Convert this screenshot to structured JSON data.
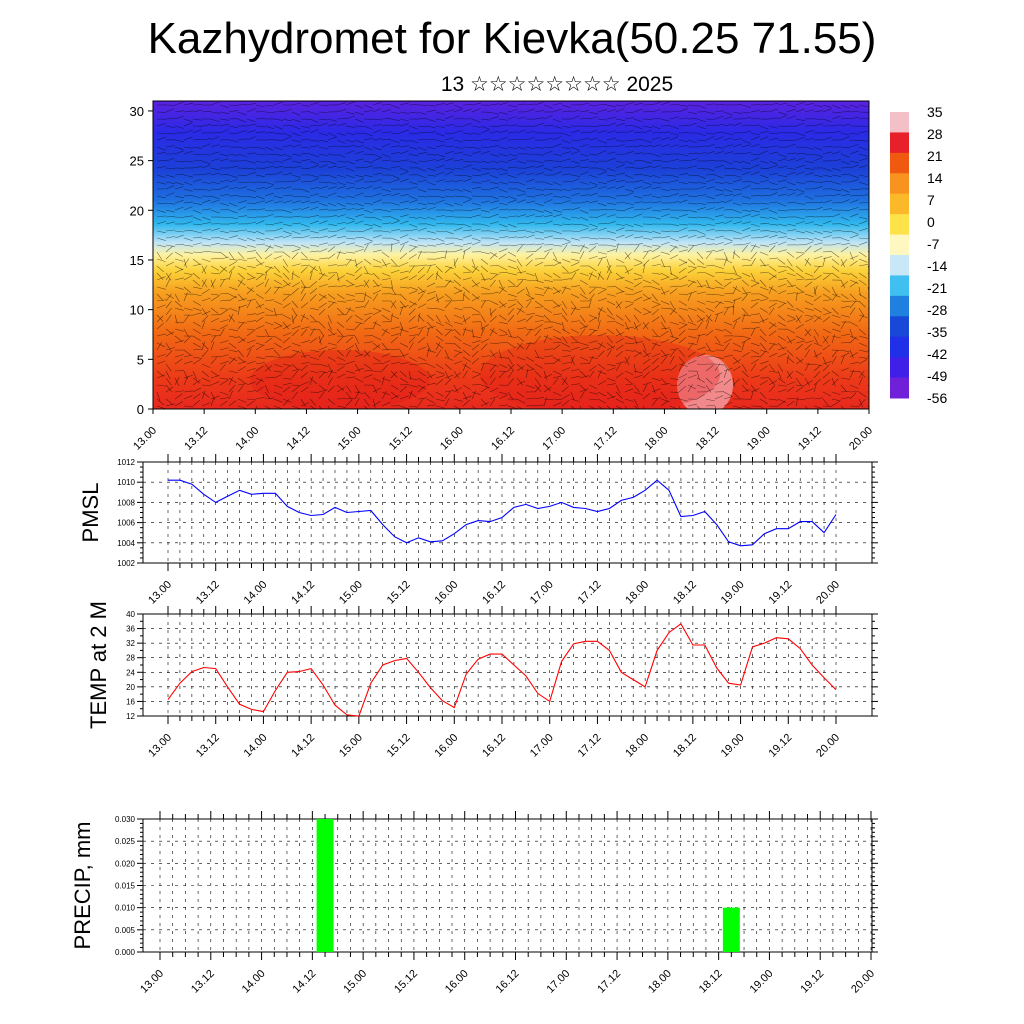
{
  "title": "Kazhydromet for Kievka(50.25 71.55)",
  "subtitle": "13 ☆☆☆☆☆☆☆☆ 2025",
  "time_labels": [
    "13.00",
    "13.12",
    "14.00",
    "14.12",
    "15.00",
    "15.12",
    "16.00",
    "16.12",
    "17.00",
    "17.12",
    "18.00",
    "18.12",
    "19.00",
    "19.12",
    "20.00"
  ],
  "chart_data": [
    {
      "type": "heatmap",
      "name": "cross-section",
      "y_ticks": [
        "0",
        "5",
        "10",
        "15",
        "20",
        "25",
        "30"
      ],
      "ylim": [
        0,
        31
      ],
      "colorbar": {
        "labels": [
          "35",
          "28",
          "21",
          "14",
          "7",
          "0",
          "-7",
          "-14",
          "-21",
          "-28",
          "-35",
          "-42",
          "-49",
          "-56"
        ],
        "colors": [
          "#f4c0c8",
          "#e8202a",
          "#f05a10",
          "#f7931e",
          "#fbb829",
          "#fde24a",
          "#fef8c0",
          "#c8e8f8",
          "#40c0f0",
          "#2080e0",
          "#1848d8",
          "#2030e8",
          "#4020e8",
          "#7020d8"
        ]
      },
      "overlay": "wind barbs"
    },
    {
      "type": "line",
      "ylabel": "PMSL",
      "ylim": [
        1002,
        1012
      ],
      "y_ticks": [
        "1012",
        "1010",
        "1008",
        "1006",
        "1004",
        "1002"
      ],
      "color": "#0000ff",
      "x": [
        0,
        3,
        6,
        9,
        12,
        15,
        18,
        21,
        24,
        27,
        30,
        33,
        36,
        39,
        42,
        45,
        48,
        51,
        54,
        57,
        60,
        63,
        66,
        69,
        72,
        75,
        78,
        81,
        84,
        87,
        90,
        93,
        96,
        99,
        102,
        105,
        108,
        111,
        114,
        117,
        120,
        123,
        126,
        129,
        132,
        135,
        138,
        141,
        144,
        147,
        150,
        153,
        156,
        159,
        162,
        165,
        168
      ],
      "values": [
        1010.2,
        1010.2,
        1009.8,
        1008.8,
        1008.0,
        1008.6,
        1009.2,
        1008.8,
        1008.9,
        1008.9,
        1007.6,
        1007.0,
        1006.7,
        1006.8,
        1007.5,
        1007.0,
        1007.1,
        1007.2,
        1005.8,
        1004.6,
        1004.0,
        1004.5,
        1004.1,
        1004.2,
        1004.9,
        1005.8,
        1006.2,
        1006.1,
        1006.5,
        1007.5,
        1007.8,
        1007.4,
        1007.6,
        1008.0,
        1007.5,
        1007.4,
        1007.1,
        1007.4,
        1008.2,
        1008.5,
        1009.2,
        1010.2,
        1009.2,
        1006.6,
        1006.7,
        1007.1,
        1005.8,
        1004.1,
        1003.7,
        1003.8,
        1004.9,
        1005.4,
        1005.4,
        1006.1,
        1006.1,
        1005.0,
        1006.8
      ]
    },
    {
      "type": "line",
      "ylabel": "TEMP at 2 M",
      "ylim": [
        12,
        40
      ],
      "y_ticks": [
        "40",
        "36",
        "32",
        "28",
        "24",
        "20",
        "16",
        "12"
      ],
      "color": "#ff0000",
      "x": [
        0,
        3,
        6,
        9,
        12,
        15,
        18,
        21,
        24,
        27,
        30,
        33,
        36,
        39,
        42,
        45,
        48,
        51,
        54,
        57,
        60,
        63,
        66,
        69,
        72,
        75,
        78,
        81,
        84,
        87,
        90,
        93,
        96,
        99,
        102,
        105,
        108,
        111,
        114,
        117,
        120,
        123,
        126,
        129,
        132,
        135,
        138,
        141,
        144,
        147,
        150,
        153,
        156,
        159,
        162,
        165,
        168
      ],
      "values": [
        16.5,
        21.0,
        24.2,
        25.3,
        25.0,
        20.0,
        15.2,
        13.8,
        13.2,
        19.0,
        24.0,
        24.2,
        25.0,
        20.5,
        15.0,
        12.3,
        12.0,
        21.0,
        26.0,
        27.2,
        27.8,
        24.0,
        19.8,
        16.2,
        14.3,
        23.5,
        27.6,
        29.0,
        29.0,
        26.0,
        23.0,
        18.2,
        16.0,
        27.0,
        31.8,
        32.5,
        32.5,
        30.0,
        24.0,
        22.0,
        20.0,
        30.0,
        34.9,
        37.3,
        31.5,
        31.5,
        25.2,
        21.0,
        20.5,
        31.0,
        32.0,
        33.5,
        33.2,
        30.5,
        26.0,
        22.5,
        19.2
      ]
    },
    {
      "type": "bar",
      "ylabel": "PRECIP, mm",
      "ylim": [
        0,
        0.03
      ],
      "y_ticks": [
        "0.030",
        "0.025",
        "0.020",
        "0.015",
        "0.010",
        "0.005",
        "0.000"
      ],
      "color": "#00ff00",
      "x": [
        39,
        135
      ],
      "width": 3,
      "values": [
        0.03,
        0.01
      ]
    }
  ]
}
